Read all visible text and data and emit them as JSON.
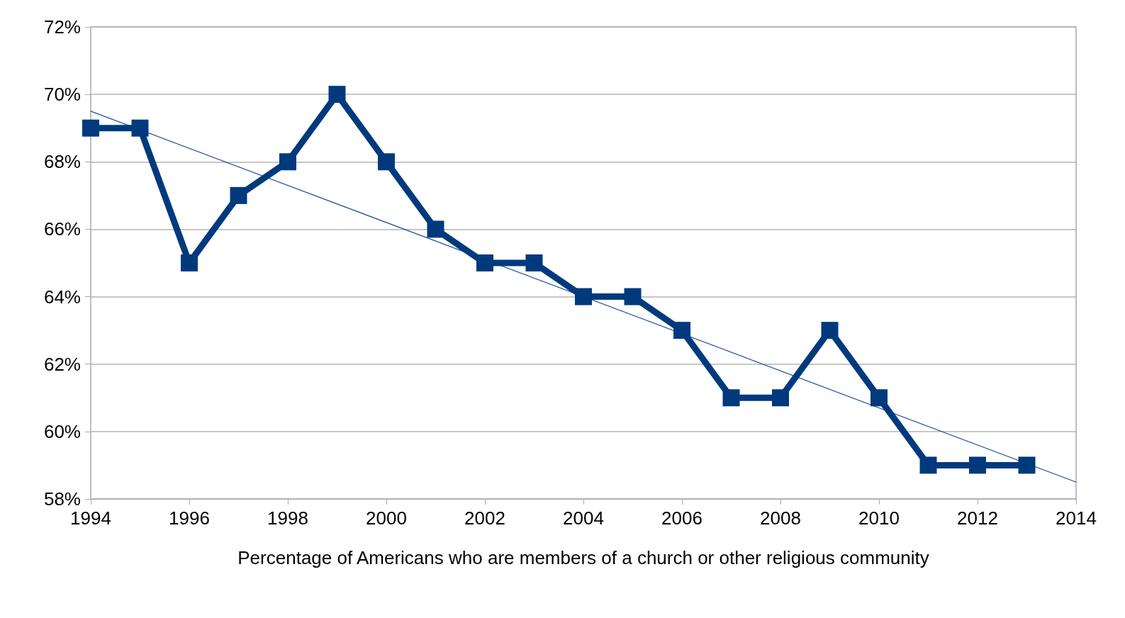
{
  "chart_data": {
    "type": "line",
    "xlabel": "Percentage of Americans who are members of a church or other religious community",
    "x": [
      1994,
      1995,
      1996,
      1997,
      1998,
      1999,
      2000,
      2001,
      2002,
      2003,
      2004,
      2005,
      2006,
      2007,
      2008,
      2009,
      2010,
      2011,
      2012,
      2013
    ],
    "series": [
      {
        "color": "#003a7d",
        "values": [
          69,
          69,
          65,
          67,
          68,
          70,
          68,
          66,
          65,
          65,
          64,
          64,
          63,
          61,
          61,
          63,
          61,
          59,
          59,
          59
        ],
        "marker": "square"
      },
      {
        "type": "line",
        "color": "#1f4e9a",
        "x": [
          1994,
          2014
        ],
        "values": [
          69.5,
          58.5
        ],
        "marker": "none"
      }
    ],
    "xlim": [
      1994,
      2014
    ],
    "xticks": [
      1994,
      1996,
      1998,
      2000,
      2002,
      2004,
      2006,
      2008,
      2010,
      2012,
      2014
    ],
    "ylim": [
      58,
      72
    ],
    "yticks": [
      {
        "value": 58,
        "label": "58%"
      },
      {
        "value": 60,
        "label": "60%"
      },
      {
        "value": 62,
        "label": "62%"
      },
      {
        "value": 64,
        "label": "64%"
      },
      {
        "value": 66,
        "label": "66%"
      },
      {
        "value": 68,
        "label": "68%"
      },
      {
        "value": 70,
        "label": "70%"
      },
      {
        "value": 72,
        "label": "72%"
      }
    ],
    "grid": "y",
    "line_style": "solid"
  }
}
